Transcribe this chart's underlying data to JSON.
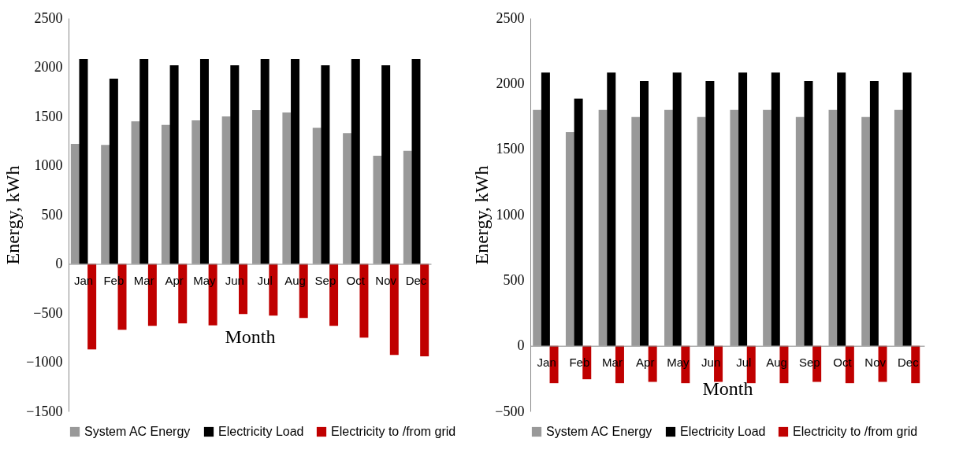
{
  "chart_data": [
    {
      "type": "bar",
      "xlabel": "Month",
      "ylabel": "Energy, kWh",
      "categories": [
        "Jan",
        "Feb",
        "Mar",
        "Apr",
        "May",
        "Jun",
        "Jul",
        "Aug",
        "Sep",
        "Oct",
        "Nov",
        "Dec"
      ],
      "series": [
        {
          "name": "System AC Energy",
          "color": "#999999",
          "values": [
            1220,
            1210,
            1450,
            1415,
            1460,
            1500,
            1565,
            1540,
            1385,
            1330,
            1100,
            1150
          ]
        },
        {
          "name": "Electricity Load",
          "color": "#000000",
          "values": [
            2085,
            1885,
            2085,
            2020,
            2085,
            2020,
            2085,
            2085,
            2020,
            2085,
            2020,
            2085
          ]
        },
        {
          "name": "Electricity to /from grid",
          "color": "#c00000",
          "values": [
            -870,
            -670,
            -630,
            -605,
            -625,
            -510,
            -525,
            -550,
            -630,
            -750,
            -925,
            -940
          ]
        }
      ],
      "ylim": [
        -1500,
        2500
      ],
      "yticks": [
        -1500,
        -1000,
        -500,
        0,
        500,
        1000,
        1500,
        2000,
        2500
      ],
      "legend": "bottom"
    },
    {
      "type": "bar",
      "xlabel": "Month",
      "ylabel": "Energy, kWh",
      "categories": [
        "Jan",
        "Feb",
        "Mar",
        "Apr",
        "May",
        "Jun",
        "Jul",
        "Aug",
        "Sep",
        "Oct",
        "Nov",
        "Dec"
      ],
      "series": [
        {
          "name": "System AC Energy",
          "color": "#999999",
          "values": [
            1800,
            1630,
            1800,
            1745,
            1800,
            1745,
            1800,
            1800,
            1745,
            1800,
            1745,
            1800
          ]
        },
        {
          "name": "Electricity Load",
          "color": "#000000",
          "values": [
            2085,
            1885,
            2085,
            2020,
            2085,
            2020,
            2085,
            2085,
            2020,
            2085,
            2020,
            2085
          ]
        },
        {
          "name": "Electricity to /from grid",
          "color": "#c00000",
          "values": [
            -285,
            -255,
            -285,
            -275,
            -285,
            -275,
            -285,
            -285,
            -275,
            -285,
            -275,
            -285
          ]
        }
      ],
      "ylim": [
        -500,
        2500
      ],
      "yticks": [
        -500,
        0,
        500,
        1000,
        1500,
        2000,
        2500
      ],
      "legend": "bottom"
    }
  ]
}
